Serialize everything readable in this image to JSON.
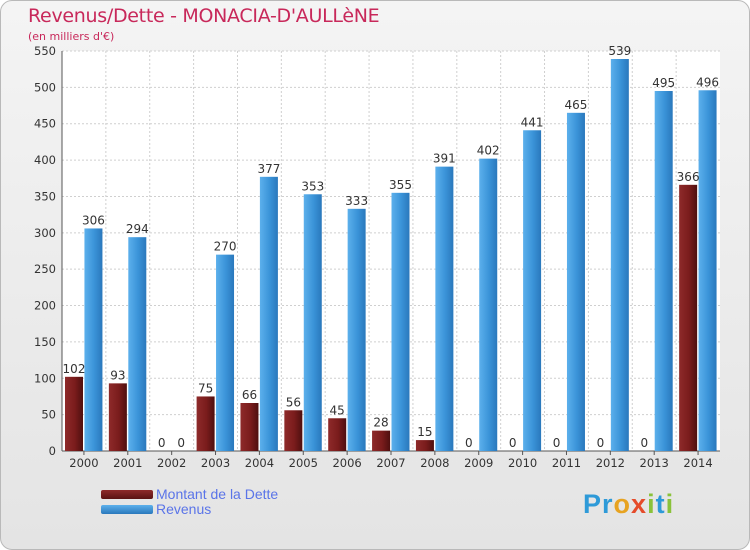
{
  "header": {
    "title": "Revenus/Dette - MONACIA-D'AULLèNE",
    "subtitle": "(en milliers d'€)"
  },
  "legend": [
    {
      "label": "Montant de la Dette",
      "color": "#7a1c1c"
    },
    {
      "label": "Revenus",
      "color": "#3a93d8"
    }
  ],
  "logo": {
    "letters": [
      "P",
      "r",
      "o",
      "x",
      "i",
      "t",
      "i"
    ]
  },
  "chart_data": {
    "type": "bar",
    "categories": [
      "2000",
      "2001",
      "2002",
      "2003",
      "2004",
      "2005",
      "2006",
      "2007",
      "2008",
      "2009",
      "2010",
      "2011",
      "2012",
      "2013",
      "2014"
    ],
    "series": [
      {
        "name": "Montant de la Dette",
        "color": "#7a1c1c",
        "values": [
          102,
          93,
          0,
          75,
          66,
          56,
          45,
          28,
          15,
          0,
          0,
          0,
          0,
          0,
          366
        ]
      },
      {
        "name": "Revenus",
        "color": "#3a93d8",
        "values": [
          306,
          294,
          0,
          270,
          377,
          353,
          333,
          355,
          391,
          402,
          441,
          465,
          539,
          495,
          496
        ]
      }
    ],
    "ylim": [
      0,
      550
    ],
    "yticks": [
      0,
      50,
      100,
      150,
      200,
      250,
      300,
      350,
      400,
      450,
      500,
      550
    ],
    "grid": true,
    "legend_position": "bottom-left"
  }
}
